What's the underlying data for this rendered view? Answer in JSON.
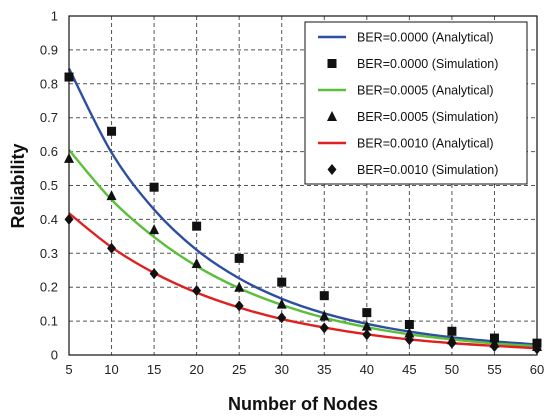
{
  "chart_data": {
    "type": "line",
    "title": "",
    "xlabel": "Number of Nodes",
    "ylabel": "Reliability",
    "xlim": [
      5,
      60
    ],
    "ylim": [
      0,
      1
    ],
    "x_ticks": [
      5,
      10,
      15,
      20,
      25,
      30,
      35,
      40,
      45,
      50,
      55,
      60
    ],
    "y_ticks": [
      0,
      0.1,
      0.2,
      0.3,
      0.4,
      0.5,
      0.6,
      0.7,
      0.8,
      0.9,
      1
    ],
    "x_tick_labels": [
      "5",
      "10",
      "15",
      "20",
      "25",
      "30",
      "35",
      "40",
      "45",
      "50",
      "55",
      "60"
    ],
    "y_tick_labels": [
      "0",
      "0.1",
      "0.2",
      "0.3",
      "0.4",
      "0.5",
      "0.6",
      "0.7",
      "0.8",
      "0.9",
      "1"
    ],
    "grid": true,
    "legend_position": "top-right",
    "series": [
      {
        "name": "BER=0.0000 (Analytical)",
        "kind": "line",
        "color": "#2e4fa0",
        "x": [
          5,
          10,
          15,
          20,
          25,
          30,
          35,
          40,
          45,
          50,
          55,
          60
        ],
        "y": [
          0.845,
          0.597,
          0.429,
          0.31,
          0.226,
          0.166,
          0.123,
          0.092,
          0.069,
          0.052,
          0.04,
          0.031
        ]
      },
      {
        "name": "BER=0.0000 (Simulation)",
        "kind": "marker",
        "marker": "square",
        "color": "#111111",
        "x": [
          5,
          10,
          15,
          20,
          25,
          30,
          35,
          40,
          45,
          50,
          55,
          60
        ],
        "y": [
          0.82,
          0.66,
          0.495,
          0.38,
          0.285,
          0.215,
          0.175,
          0.125,
          0.09,
          0.07,
          0.05,
          0.035
        ]
      },
      {
        "name": "BER=0.0005 (Analytical)",
        "kind": "line",
        "color": "#5bbf3a",
        "x": [
          5,
          10,
          15,
          20,
          25,
          30,
          35,
          40,
          45,
          50,
          55,
          60
        ],
        "y": [
          0.605,
          0.458,
          0.348,
          0.262,
          0.197,
          0.148,
          0.11,
          0.082,
          0.061,
          0.046,
          0.034,
          0.026
        ]
      },
      {
        "name": "BER=0.0005 (Simulation)",
        "kind": "marker",
        "marker": "triangle",
        "color": "#111111",
        "x": [
          5,
          10,
          15,
          20,
          25,
          30,
          35,
          40,
          45,
          50,
          55,
          60
        ],
        "y": [
          0.58,
          0.47,
          0.37,
          0.27,
          0.2,
          0.15,
          0.115,
          0.085,
          0.065,
          0.045,
          0.035,
          0.025
        ]
      },
      {
        "name": "BER=0.0010 (Analytical)",
        "kind": "line",
        "color": "#e02020",
        "x": [
          5,
          10,
          15,
          20,
          25,
          30,
          35,
          40,
          45,
          50,
          55,
          60
        ],
        "y": [
          0.418,
          0.318,
          0.242,
          0.184,
          0.14,
          0.106,
          0.081,
          0.061,
          0.046,
          0.035,
          0.027,
          0.02
        ]
      },
      {
        "name": "BER=0.0010 (Simulation)",
        "kind": "marker",
        "marker": "diamond",
        "color": "#111111",
        "x": [
          5,
          10,
          15,
          20,
          25,
          30,
          35,
          40,
          45,
          50,
          55,
          60
        ],
        "y": [
          0.4,
          0.315,
          0.24,
          0.19,
          0.145,
          0.11,
          0.08,
          0.06,
          0.045,
          0.035,
          0.025,
          0.018
        ]
      }
    ]
  }
}
